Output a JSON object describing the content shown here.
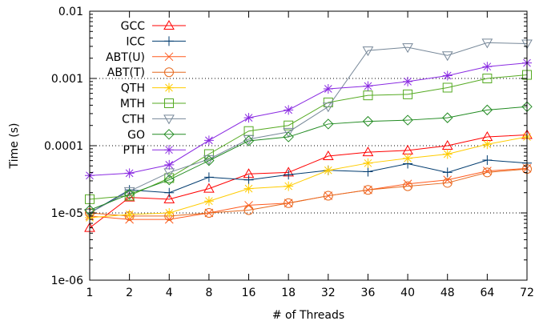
{
  "chart_data": {
    "type": "line",
    "title": "",
    "xlabel": "# of Threads",
    "ylabel": "Time (s)",
    "y_scale": "log",
    "ylim": [
      1e-06,
      0.01
    ],
    "y_ticks": [
      "1e-06",
      "1e-05",
      "0.0001",
      "0.001",
      "0.01"
    ],
    "grid": "dotted horizontal at major decades",
    "legend_position": "top-left",
    "categories": [
      "1",
      "2",
      "4",
      "8",
      "16",
      "18",
      "32",
      "36",
      "40",
      "48",
      "64",
      "72"
    ],
    "series": [
      {
        "name": "GCC",
        "color": "#ff0000",
        "marker": "triangle-up",
        "values": [
          6e-06,
          1.7e-05,
          1.6e-05,
          2.3e-05,
          3.8e-05,
          4e-05,
          7e-05,
          8e-05,
          8.5e-05,
          0.0001,
          0.000135,
          0.000145
        ]
      },
      {
        "name": "ICC",
        "color": "#003b6f",
        "marker": "plus",
        "values": [
          1e-05,
          2.2e-05,
          2e-05,
          3.4e-05,
          3.1e-05,
          3.7e-05,
          4.3e-05,
          4.1e-05,
          5.4e-05,
          4e-05,
          6.1e-05,
          5.5e-05
        ]
      },
      {
        "name": "ABT(U)",
        "color": "#ff5a1e",
        "marker": "cross",
        "values": [
          9e-06,
          8e-06,
          8e-06,
          1e-05,
          1.3e-05,
          1.4e-05,
          1.8e-05,
          2.2e-05,
          2.7e-05,
          3.1e-05,
          4.2e-05,
          4.6e-05
        ]
      },
      {
        "name": "ABT(T)",
        "color": "#e6691e",
        "marker": "circle",
        "values": [
          1e-05,
          9e-06,
          9e-06,
          1e-05,
          1.1e-05,
          1.4e-05,
          1.8e-05,
          2.2e-05,
          2.5e-05,
          2.8e-05,
          4e-05,
          4.5e-05
        ]
      },
      {
        "name": "QTH",
        "color": "#ffcc00",
        "marker": "asterisk",
        "values": [
          8.5e-06,
          9.5e-06,
          1e-05,
          1.5e-05,
          2.3e-05,
          2.5e-05,
          4.3e-05,
          5.5e-05,
          6.5e-05,
          7.5e-05,
          0.000105,
          0.000135
        ]
      },
      {
        "name": "MTH",
        "color": "#55aa22",
        "marker": "square",
        "values": [
          1.6e-05,
          1.8e-05,
          3.3e-05,
          7.5e-05,
          0.000165,
          0.0002,
          0.00044,
          0.00056,
          0.00058,
          0.00073,
          0.001,
          0.00113
        ]
      },
      {
        "name": "CTH",
        "color": "#778899",
        "marker": "triangle-down",
        "values": [
          1e-05,
          2.1e-05,
          4e-05,
          6.3e-05,
          0.000125,
          0.00016,
          0.00038,
          0.0026,
          0.0029,
          0.0022,
          0.0034,
          0.0033
        ]
      },
      {
        "name": "GO",
        "color": "#228b22",
        "marker": "diamond",
        "values": [
          1.1e-05,
          1.9e-05,
          3.1e-05,
          6e-05,
          0.000118,
          0.000135,
          0.00021,
          0.00023,
          0.00024,
          0.00026,
          0.00034,
          0.00038
        ]
      },
      {
        "name": "PTH",
        "color": "#8a2be2",
        "marker": "asterisk",
        "values": [
          3.6e-05,
          3.9e-05,
          5.2e-05,
          0.00012,
          0.00026,
          0.00034,
          0.0007,
          0.00077,
          0.0009,
          0.0011,
          0.0015,
          0.0017
        ]
      }
    ]
  }
}
